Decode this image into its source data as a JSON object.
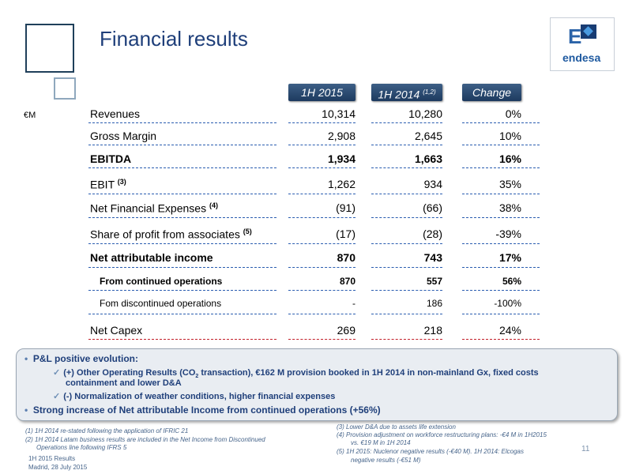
{
  "title": "Financial results",
  "logo": {
    "mark": "E",
    "word": "endesa"
  },
  "unit": "€M",
  "headers": {
    "col1": "1H 2015",
    "col2": "1H 2014",
    "col2_sup": "(1,2)",
    "col3": "Change"
  },
  "rows": [
    {
      "label": "Revenues",
      "sup": "",
      "v1": "10,314",
      "v2": "10,280",
      "v3": "0%"
    },
    {
      "label": "Gross Margin",
      "sup": "",
      "v1": "2,908",
      "v2": "2,645",
      "v3": "10%"
    },
    {
      "label": "EBITDA",
      "sup": "",
      "v1": "1,934",
      "v2": "1,663",
      "v3": "16%"
    },
    {
      "label": "EBIT",
      "sup": "(3)",
      "v1": "1,262",
      "v2": "934",
      "v3": "35%"
    },
    {
      "label": "Net Financial Expenses",
      "sup": "(4)",
      "v1": "(91)",
      "v2": "(66)",
      "v3": "38%"
    },
    {
      "label": "Share of profit from associates",
      "sup": "(5)",
      "v1": "(17)",
      "v2": "(28)",
      "v3": "-39%"
    },
    {
      "label": "Net attributable income",
      "sup": "",
      "v1": "870",
      "v2": "743",
      "v3": "17%"
    },
    {
      "label": "From continued operations",
      "sup": "",
      "v1": "870",
      "v2": "557",
      "v3": "56%"
    },
    {
      "label": "Fom discontinued operations",
      "sup": "",
      "v1": "-",
      "v2": "186",
      "v3": "-100%"
    },
    {
      "label": "Net Capex",
      "sup": "",
      "v1": "269",
      "v2": "218",
      "v3": "24%"
    }
  ],
  "summary": {
    "b1": "P&L positive evolution:",
    "s1_a": "(+) Other Operating Results (CO",
    "s1_sub": "2",
    "s1_b": " transaction), €162 M provision booked in 1H 2014 in non-mainland Gx, fixed costs",
    "s1_c": "containment and lower D&A",
    "s2": "(-) Normalization of weather conditions, higher financial expenses",
    "b2": "Strong increase of Net attributable Income from continued operations (+56%)"
  },
  "footnotes": {
    "f1": "(1)  1H 2014 re-stated following the application of  IFRIC 21",
    "f2a": "(2)  1H 2014 Latam business results are included in the Net Income from Discontinued",
    "f2b": "Operations line following IFRS 5",
    "f3": "(3)   Lower D&A due to assets life extension",
    "f4a": "(4)   Provision adjustment on workforce restructuring plans: -€4 M in 1H2015",
    "f4b": "vs. €19 M in 1H 2014",
    "f5a": "(5)   1H 2015: Nuclenor negative results (-€40 M). 1H 2014: Elcogas",
    "f5b": "negative results (-€51 M)"
  },
  "footer": {
    "line1": "1H 2015 Results",
    "line2": "Madrid, 28 July 2015",
    "page": "11"
  }
}
